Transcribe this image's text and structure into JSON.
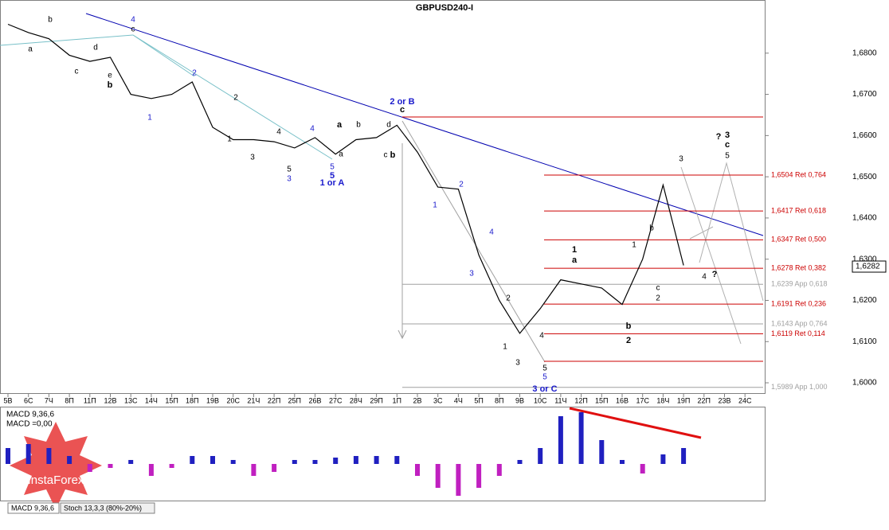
{
  "chart_data": {
    "type": "line",
    "title": "GBPUSD240-I",
    "categories": [
      "5В",
      "6С",
      "7Ч",
      "8П",
      "11П",
      "12В",
      "13С",
      "14Ч",
      "15П",
      "18П",
      "19В",
      "20С",
      "21Ч",
      "22П",
      "25П",
      "26В",
      "27С",
      "28Ч",
      "29П",
      "1П",
      "2В",
      "3С",
      "4Ч",
      "5П",
      "8П",
      "9В",
      "10С",
      "11Ч",
      "12П",
      "15П",
      "16В",
      "17С",
      "18Ч",
      "19П",
      "22П",
      "23В",
      "24С"
    ],
    "series": [
      {
        "name": "GBPUSD",
        "color": "#000000",
        "values": [
          1.687,
          1.685,
          1.6835,
          1.6795,
          1.678,
          1.679,
          1.67,
          1.669,
          1.67,
          1.673,
          1.662,
          1.659,
          1.659,
          1.6585,
          1.657,
          1.6595,
          1.6555,
          1.659,
          1.6595,
          1.6625,
          1.656,
          1.6475,
          1.647,
          1.631,
          1.62,
          1.612,
          1.618,
          1.625,
          1.624,
          1.623,
          1.619,
          1.63,
          1.648,
          1.6285,
          null,
          null,
          null
        ]
      }
    ],
    "ylim": [
      1.5973,
      1.6929
    ],
    "yticks": [
      {
        "value": 1.6,
        "label": "1,6000"
      },
      {
        "value": 1.61,
        "label": "1,6100"
      },
      {
        "value": 1.62,
        "label": "1,6200"
      },
      {
        "value": 1.63,
        "label": "1,6300"
      },
      {
        "value": 1.64,
        "label": "1,6400"
      },
      {
        "value": 1.65,
        "label": "1,6500"
      },
      {
        "value": 1.66,
        "label": "1,6600"
      },
      {
        "value": 1.67,
        "label": "1,6700"
      },
      {
        "value": 1.68,
        "label": "1,6800"
      }
    ],
    "last_price": {
      "value": 1.6282,
      "label": "1,6282"
    },
    "levels": [
      {
        "value": 1.6504,
        "label": "1,6504 Ret 0,764",
        "color": "#cc0000"
      },
      {
        "value": 1.6417,
        "label": "1,6417 Ret 0,618",
        "color": "#cc0000"
      },
      {
        "value": 1.6347,
        "label": "1,6347 Ret 0,500",
        "color": "#cc0000"
      },
      {
        "value": 1.6278,
        "label": "1,6278 Ret 0,382",
        "color": "#cc0000"
      },
      {
        "value": 1.6239,
        "label": "1,6239 App 0,618",
        "color": "#a0a0a0"
      },
      {
        "value": 1.6191,
        "label": "1,6191 Ret 0,236",
        "color": "#cc0000"
      },
      {
        "value": 1.6143,
        "label": "1,6143 App 0,764",
        "color": "#a0a0a0"
      },
      {
        "value": 1.6119,
        "label": "1,6119 Ret 0,114",
        "color": "#cc0000"
      },
      {
        "value": 1.5989,
        "label": "1,5989 App 1,000",
        "color": "#a0a0a0"
      }
    ],
    "annotations": [
      {
        "text": "4",
        "color": "#1a1acc"
      },
      {
        "text": "c",
        "color": "#000"
      },
      {
        "text": "b",
        "color": "#000"
      },
      {
        "text": "a",
        "color": "#000"
      },
      {
        "text": "c",
        "color": "#000"
      },
      {
        "text": "d",
        "color": "#000"
      },
      {
        "text": "e",
        "color": "#000"
      },
      {
        "text": "b",
        "color": "#000"
      },
      {
        "text": "1",
        "color": "#1a1acc"
      },
      {
        "text": "2",
        "color": "#1a1acc"
      },
      {
        "text": "2",
        "color": "#000"
      },
      {
        "text": "1",
        "color": "#000"
      },
      {
        "text": "3",
        "color": "#000"
      },
      {
        "text": "4",
        "color": "#000"
      },
      {
        "text": "4",
        "color": "#1a1acc"
      },
      {
        "text": "5",
        "color": "#000"
      },
      {
        "text": "3",
        "color": "#1a1acc"
      },
      {
        "text": "5",
        "color": "#1a1acc"
      },
      {
        "text": "5",
        "color": "#1a1acc"
      },
      {
        "text": "1 or A",
        "color": "#1a1acc"
      },
      {
        "text": "a",
        "color": "#000"
      },
      {
        "text": "a",
        "color": "#000"
      },
      {
        "text": "b",
        "color": "#000"
      },
      {
        "text": "d",
        "color": "#000"
      },
      {
        "text": "c",
        "color": "#000"
      },
      {
        "text": "b",
        "color": "#000"
      },
      {
        "text": "2 or B",
        "color": "#1a1acc"
      },
      {
        "text": "c",
        "color": "#000"
      },
      {
        "text": "1",
        "color": "#1a1acc"
      },
      {
        "text": "2",
        "color": "#1a1acc"
      },
      {
        "text": "3",
        "color": "#1a1acc"
      },
      {
        "text": "4",
        "color": "#1a1acc"
      },
      {
        "text": "2",
        "color": "#000"
      },
      {
        "text": "1",
        "color": "#000"
      },
      {
        "text": "3",
        "color": "#000"
      },
      {
        "text": "4",
        "color": "#000"
      },
      {
        "text": "5",
        "color": "#000"
      },
      {
        "text": "5",
        "color": "#1a1acc"
      },
      {
        "text": "3 or C",
        "color": "#1a1acc"
      },
      {
        "text": "1",
        "color": "#000"
      },
      {
        "text": "a",
        "color": "#000"
      },
      {
        "text": "1",
        "color": "#000"
      },
      {
        "text": "b",
        "color": "#000"
      },
      {
        "text": "c",
        "color": "#000"
      },
      {
        "text": "2",
        "color": "#000"
      },
      {
        "text": "b",
        "color": "#000"
      },
      {
        "text": "2",
        "color": "#000"
      },
      {
        "text": "3",
        "color": "#000"
      },
      {
        "text": "4",
        "color": "#000"
      },
      {
        "text": "?",
        "color": "#000"
      },
      {
        "text": "?",
        "color": "#000"
      },
      {
        "text": "3",
        "color": "#000"
      },
      {
        "text": "c",
        "color": "#000"
      },
      {
        "text": "5",
        "color": "#000"
      }
    ],
    "indicator": {
      "title": "MACD 9,36,6",
      "value_text": "MACD =0,00",
      "ylim": [
        -0.0045,
        0.0071
      ],
      "positive_color": "#2020c0",
      "negative_color": "#c020c0",
      "values": [
        0.002,
        0.0025,
        0.002,
        0.001,
        -0.001,
        -0.0005,
        0.0005,
        -0.0015,
        -0.0005,
        0.001,
        0.001,
        0.0005,
        -0.0015,
        -0.001,
        0.0005,
        0.0005,
        0.0008,
        0.001,
        0.001,
        0.001,
        -0.0015,
        -0.003,
        -0.004,
        -0.003,
        -0.0015,
        0.0005,
        0.002,
        0.006,
        0.0065,
        0.003,
        0.0005,
        -0.0012,
        0.0012,
        0.002,
        null,
        null,
        null
      ]
    },
    "tabs": [
      "MACD 9,36,6",
      "Stoch 13,3,3 (80%-20%)"
    ],
    "logo": "InstaForex"
  }
}
